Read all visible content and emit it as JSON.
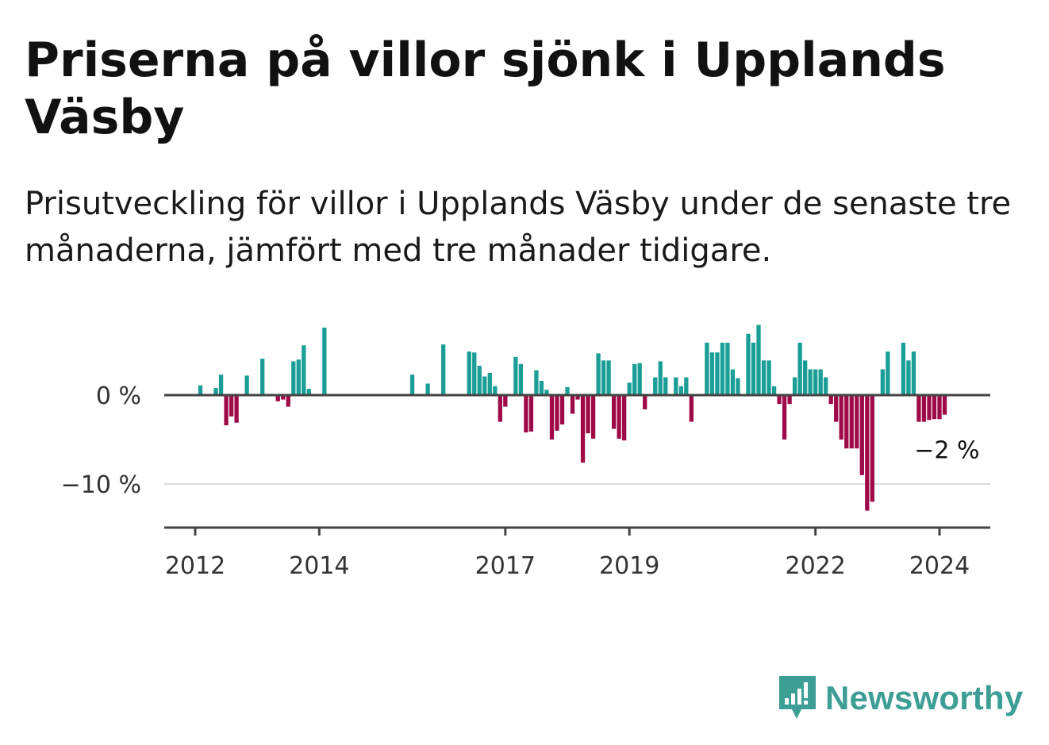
{
  "title": "Priserna på villor sjönk i Upplands Väsby",
  "subtitle": "Prisutveckling för villor i Upplands Väsby under de senaste tre månaderna, jämfört med tre månader tidigare.",
  "brand": {
    "name": "Newsworthy",
    "color": "#3d9e96",
    "icon": "newsworthy-logo-icon"
  },
  "colors": {
    "positive": "#1a9e96",
    "negative": "#9e0a47",
    "axis": "#444444",
    "grid": "#dddddd"
  },
  "chart_data": {
    "type": "bar",
    "x_start": "2011-07",
    "x_end": "2024-12",
    "x_tick_labels": [
      "2012",
      "2014",
      "2017",
      "2019",
      "2022",
      "2024"
    ],
    "x_ticks": [
      "2012-01",
      "2014-01",
      "2017-01",
      "2019-01",
      "2022-01",
      "2024-01"
    ],
    "y_tick_labels": [
      "0 %",
      "−10 %"
    ],
    "y_ticks": [
      0,
      -10
    ],
    "ylim": [
      -15,
      8
    ],
    "ylabel": "",
    "xlabel": "",
    "grid": "horizontal",
    "end_label": "−2 %",
    "series": [
      {
        "points": [
          [
            "2012-02",
            1.1
          ],
          [
            "2012-05",
            0.8
          ],
          [
            "2012-06",
            2.3
          ],
          [
            "2012-07",
            -3.4
          ],
          [
            "2012-08",
            -2.4
          ],
          [
            "2012-09",
            -3.1
          ],
          [
            "2012-11",
            2.2
          ],
          [
            "2013-02",
            4.1
          ],
          [
            "2013-05",
            -0.7
          ],
          [
            "2013-06",
            -0.5
          ],
          [
            "2013-07",
            -1.3
          ],
          [
            "2013-08",
            3.8
          ],
          [
            "2013-09",
            4.0
          ],
          [
            "2013-10",
            5.6
          ],
          [
            "2013-11",
            0.7
          ],
          [
            "2014-02",
            7.6
          ],
          [
            "2015-07",
            2.3
          ],
          [
            "2015-10",
            1.3
          ],
          [
            "2016-01",
            5.7
          ],
          [
            "2016-06",
            4.9
          ],
          [
            "2016-07",
            4.8
          ],
          [
            "2016-08",
            3.3
          ],
          [
            "2016-09",
            2.1
          ],
          [
            "2016-10",
            2.5
          ],
          [
            "2016-11",
            1.0
          ],
          [
            "2016-12",
            -3.0
          ],
          [
            "2017-01",
            -1.3
          ],
          [
            "2017-03",
            4.3
          ],
          [
            "2017-04",
            3.5
          ],
          [
            "2017-05",
            -4.2
          ],
          [
            "2017-06",
            -4.1
          ],
          [
            "2017-07",
            2.8
          ],
          [
            "2017-08",
            1.6
          ],
          [
            "2017-09",
            0.6
          ],
          [
            "2017-10",
            -5.0
          ],
          [
            "2017-11",
            -4.0
          ],
          [
            "2017-12",
            -3.3
          ],
          [
            "2018-01",
            0.9
          ],
          [
            "2018-02",
            -2.1
          ],
          [
            "2018-03",
            -0.5
          ],
          [
            "2018-04",
            -7.6
          ],
          [
            "2018-05",
            -4.3
          ],
          [
            "2018-06",
            -4.9
          ],
          [
            "2018-07",
            4.7
          ],
          [
            "2018-08",
            3.9
          ],
          [
            "2018-09",
            3.9
          ],
          [
            "2018-10",
            -3.8
          ],
          [
            "2018-11",
            -4.9
          ],
          [
            "2018-12",
            -5.1
          ],
          [
            "2019-01",
            1.4
          ],
          [
            "2019-02",
            3.5
          ],
          [
            "2019-03",
            3.6
          ],
          [
            "2019-04",
            -1.6
          ],
          [
            "2019-06",
            2.0
          ],
          [
            "2019-07",
            3.8
          ],
          [
            "2019-08",
            2.0
          ],
          [
            "2019-10",
            2.0
          ],
          [
            "2019-11",
            1.0
          ],
          [
            "2019-12",
            2.0
          ],
          [
            "2020-01",
            -3.0
          ],
          [
            "2020-04",
            5.9
          ],
          [
            "2020-05",
            4.8
          ],
          [
            "2020-06",
            4.8
          ],
          [
            "2020-07",
            5.9
          ],
          [
            "2020-08",
            5.9
          ],
          [
            "2020-09",
            2.9
          ],
          [
            "2020-10",
            1.9
          ],
          [
            "2020-12",
            6.9
          ],
          [
            "2021-01",
            5.9
          ],
          [
            "2021-02",
            7.9
          ],
          [
            "2021-03",
            3.9
          ],
          [
            "2021-04",
            3.9
          ],
          [
            "2021-05",
            1.0
          ],
          [
            "2021-06",
            -1.0
          ],
          [
            "2021-07",
            -5.0
          ],
          [
            "2021-08",
            -1.0
          ],
          [
            "2021-09",
            2.0
          ],
          [
            "2021-10",
            5.9
          ],
          [
            "2021-11",
            3.9
          ],
          [
            "2021-12",
            2.9
          ],
          [
            "2022-01",
            2.9
          ],
          [
            "2022-02",
            2.9
          ],
          [
            "2022-03",
            2.0
          ],
          [
            "2022-04",
            -1.0
          ],
          [
            "2022-05",
            -3.0
          ],
          [
            "2022-06",
            -5.0
          ],
          [
            "2022-07",
            -6.0
          ],
          [
            "2022-08",
            -6.0
          ],
          [
            "2022-09",
            -6.0
          ],
          [
            "2022-10",
            -9.0
          ],
          [
            "2022-11",
            -13.0
          ],
          [
            "2022-12",
            -12.0
          ],
          [
            "2023-02",
            2.9
          ],
          [
            "2023-03",
            4.9
          ],
          [
            "2023-06",
            5.9
          ],
          [
            "2023-07",
            3.9
          ],
          [
            "2023-08",
            4.9
          ],
          [
            "2023-09",
            -3.0
          ],
          [
            "2023-10",
            -3.0
          ],
          [
            "2023-11",
            -2.8
          ],
          [
            "2023-12",
            -2.7
          ],
          [
            "2024-01",
            -2.7
          ],
          [
            "2024-02",
            -2.2
          ]
        ]
      }
    ]
  }
}
